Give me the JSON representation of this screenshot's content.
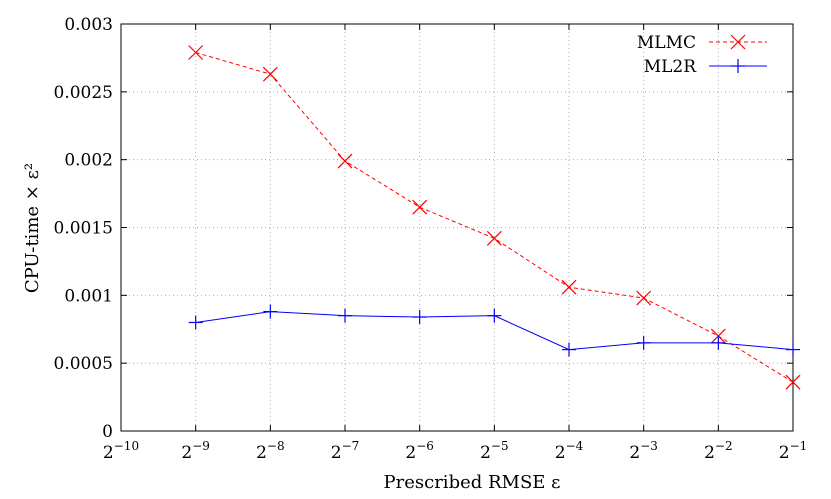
{
  "chart_data": {
    "type": "line",
    "xlabel": "Prescribed RMSE ε",
    "ylabel": "CPU-time × ε²",
    "x_scale": "log2",
    "x": [
      -9,
      -8,
      -7,
      -6,
      -5,
      -4,
      -3,
      -2,
      -1
    ],
    "xlim": [
      -10,
      -1
    ],
    "x_ticks": [
      -10,
      -9,
      -8,
      -7,
      -6,
      -5,
      -4,
      -3,
      -2,
      -1
    ],
    "x_tick_labels": [
      "2−10",
      "2−9",
      "2−8",
      "2−7",
      "2−6",
      "2−5",
      "2−4",
      "2−3",
      "2−2",
      "2−1"
    ],
    "ylim": [
      0,
      0.003
    ],
    "y_ticks": [
      0,
      0.0005,
      0.001,
      0.0015,
      0.002,
      0.0025,
      0.003
    ],
    "y_tick_labels": [
      "0",
      "0.0005",
      "0.001",
      "0.0015",
      "0.002",
      "0.0025",
      "0.003"
    ],
    "grid": true,
    "legend_position": "top-right",
    "series": [
      {
        "name": "MLMC",
        "color": "#ff0000",
        "line_style": "dashed",
        "marker": "x",
        "values": [
          0.00279,
          0.00263,
          0.00199,
          0.00165,
          0.00142,
          0.00106,
          0.00098,
          0.0007,
          0.00036
        ]
      },
      {
        "name": "ML2R",
        "color": "#0000ff",
        "line_style": "solid",
        "marker": "plus",
        "values": [
          0.0008,
          0.00088,
          0.00085,
          0.00084,
          0.00085,
          0.0006,
          0.00065,
          0.00065,
          0.0006
        ]
      }
    ]
  }
}
